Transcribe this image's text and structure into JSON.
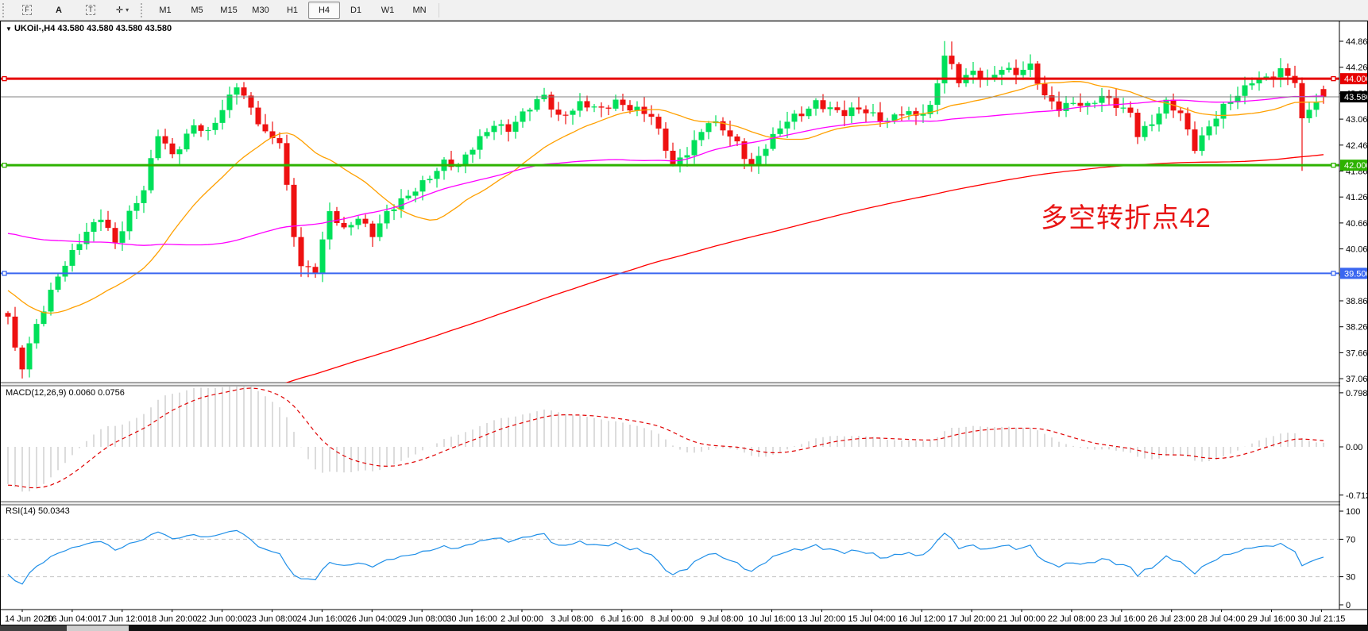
{
  "toolbar": {
    "tools": [
      {
        "id": "frame-f",
        "label": "F",
        "boxed": true
      },
      {
        "id": "font",
        "label": "A",
        "boxed": false
      },
      {
        "id": "text",
        "label": "T",
        "boxed": true
      },
      {
        "id": "cursor",
        "label": "✛",
        "boxed": false,
        "caret": "▾"
      }
    ],
    "timeframes": [
      {
        "label": "M1",
        "active": false
      },
      {
        "label": "M5",
        "active": false
      },
      {
        "label": "M15",
        "active": false
      },
      {
        "label": "M30",
        "active": false
      },
      {
        "label": "H1",
        "active": false
      },
      {
        "label": "H4",
        "active": true
      },
      {
        "label": "D1",
        "active": false
      },
      {
        "label": "W1",
        "active": false
      },
      {
        "label": "MN",
        "active": false
      }
    ]
  },
  "chart": {
    "title_arrow": "▼",
    "title": "UKOil-,H4 43.580 43.580 43.580 43.580",
    "annotation": {
      "text": "多空转折点42",
      "color": "#e81414"
    }
  },
  "chart_data": {
    "type": "candlestick",
    "symbol": "UKOil",
    "timeframe": "H4",
    "colors": {
      "up": "#00e05a",
      "down": "#ee1111",
      "ma_fast": "#ffa000",
      "ma_mid": "#ff00ff",
      "ma_slow": "#ff0000",
      "macd_hist": "#b8b8b8",
      "macd_signal": "#e00000",
      "rsi_line": "#1f8fe8",
      "price_line": "#808080"
    },
    "hlines": [
      {
        "price": 44.0,
        "tag": "44.000",
        "color": "#e60000",
        "width": 3
      },
      {
        "price": 42.0,
        "tag": "42.000",
        "color": "#2db200",
        "width": 3
      },
      {
        "price": 39.5,
        "tag": "39.500",
        "color": "#3a66f0",
        "width": 2
      }
    ],
    "current_price": {
      "value": 43.58,
      "tag": "43.580",
      "tag_bg": "#000000"
    },
    "price_axis_ticks": [
      "44.865",
      "44.265",
      "43.665",
      "43.065",
      "42.465",
      "41.865",
      "41.265",
      "40.665",
      "40.065",
      "39.465",
      "38.865",
      "38.265",
      "37.665",
      "37.065"
    ],
    "macd_axis_ticks": [
      "0.7986",
      "0.00",
      "-0.7124"
    ],
    "rsi_axis_ticks": [
      "100",
      "70",
      "30",
      "0"
    ],
    "date_labels": [
      "14 Jun 2020",
      "16 Jun 04:00",
      "17 Jun 12:00",
      "18 Jun 20:00",
      "22 Jun 00:00",
      "23 Jun 08:00",
      "24 Jun 16:00",
      "26 Jun 04:00",
      "29 Jun 08:00",
      "30 Jun 16:00",
      "2 Jul 00:00",
      "3 Jul 08:00",
      "6 Jul 16:00",
      "8 Jul 00:00",
      "9 Jul 08:00",
      "10 Jul 16:00",
      "13 Jul 20:00",
      "15 Jul 04:00",
      "16 Jul 12:00",
      "17 Jul 20:00",
      "21 Jul 00:00",
      "22 Jul 08:00",
      "23 Jul 16:00",
      "26 Jul 23:00",
      "28 Jul 04:00",
      "29 Jul 16:00",
      "30 Jul 21:15"
    ],
    "indicators": {
      "macd": {
        "label": "MACD(12,26,9) 0.0060 0.0756",
        "fast": 12,
        "slow": 26,
        "signal": 9,
        "axis_max": 0.7986,
        "axis_min": -0.7124
      },
      "rsi": {
        "label": "RSI(14) 50.0343",
        "period": 14,
        "levels": [
          70,
          30
        ],
        "axis": [
          0,
          100
        ]
      }
    },
    "moving_averages": [
      {
        "period": 21,
        "color_key": "ma_fast"
      },
      {
        "period": 55,
        "color_key": "ma_mid"
      },
      {
        "period": 200,
        "color_key": "ma_slow"
      }
    ],
    "visible_bars": 185,
    "price_keypoints": [
      [
        0,
        38.5
      ],
      [
        1,
        37.7
      ],
      [
        2,
        37.3
      ],
      [
        4,
        38.3
      ],
      [
        7,
        39.5
      ],
      [
        10,
        40.2
      ],
      [
        13,
        40.8
      ],
      [
        15,
        40.25
      ],
      [
        17,
        40.9
      ],
      [
        19,
        41.4
      ],
      [
        21,
        42.7
      ],
      [
        23,
        42.25
      ],
      [
        26,
        42.95
      ],
      [
        28,
        42.7
      ],
      [
        30,
        43.25
      ],
      [
        32,
        43.9
      ],
      [
        34,
        43.35
      ],
      [
        36,
        42.7
      ],
      [
        38,
        42.5
      ],
      [
        40,
        40.4
      ],
      [
        41,
        39.7
      ],
      [
        43,
        39.6
      ],
      [
        45,
        40.9
      ],
      [
        47,
        40.45
      ],
      [
        49,
        40.8
      ],
      [
        51,
        40.45
      ],
      [
        53,
        40.9
      ],
      [
        56,
        41.25
      ],
      [
        58,
        41.6
      ],
      [
        61,
        42.1
      ],
      [
        63,
        41.95
      ],
      [
        66,
        42.6
      ],
      [
        68,
        43.0
      ],
      [
        70,
        42.85
      ],
      [
        73,
        43.3
      ],
      [
        75,
        43.6
      ],
      [
        77,
        43.15
      ],
      [
        80,
        43.4
      ],
      [
        83,
        43.25
      ],
      [
        85,
        43.5
      ],
      [
        88,
        43.3
      ],
      [
        90,
        43.1
      ],
      [
        93,
        42.0
      ],
      [
        95,
        42.35
      ],
      [
        98,
        43.0
      ],
      [
        100,
        42.8
      ],
      [
        102,
        42.5
      ],
      [
        104,
        42.0
      ],
      [
        106,
        42.45
      ],
      [
        109,
        43.0
      ],
      [
        111,
        43.2
      ],
      [
        113,
        43.5
      ],
      [
        115,
        43.3
      ],
      [
        117,
        43.15
      ],
      [
        119,
        43.3
      ],
      [
        121,
        43.2
      ],
      [
        123,
        43.05
      ],
      [
        125,
        43.2
      ],
      [
        127,
        43.1
      ],
      [
        129,
        43.35
      ],
      [
        131,
        44.6
      ],
      [
        132,
        44.3
      ],
      [
        133,
        43.95
      ],
      [
        135,
        44.1
      ],
      [
        137,
        43.95
      ],
      [
        139,
        44.3
      ],
      [
        141,
        44.15
      ],
      [
        143,
        44.25
      ],
      [
        145,
        43.55
      ],
      [
        147,
        43.35
      ],
      [
        149,
        43.5
      ],
      [
        151,
        43.35
      ],
      [
        153,
        43.55
      ],
      [
        155,
        43.4
      ],
      [
        157,
        43.25
      ],
      [
        158,
        42.75
      ],
      [
        160,
        42.95
      ],
      [
        162,
        43.4
      ],
      [
        164,
        43.2
      ],
      [
        166,
        42.45
      ],
      [
        168,
        42.9
      ],
      [
        170,
        43.3
      ],
      [
        172,
        43.6
      ],
      [
        174,
        44.0
      ],
      [
        176,
        44.05
      ],
      [
        178,
        44.15
      ],
      [
        180,
        43.9
      ],
      [
        181,
        43.0
      ],
      [
        182,
        43.35
      ],
      [
        183,
        43.5
      ],
      [
        184,
        43.58
      ]
    ],
    "history_keypoints": [
      [
        0,
        27.5
      ],
      [
        70,
        31.5
      ],
      [
        120,
        35.5
      ],
      [
        155,
        40.5
      ],
      [
        172,
        43.0
      ],
      [
        180,
        40.5
      ],
      [
        188,
        38.8
      ],
      [
        199,
        38.6
      ]
    ],
    "wick_overrides": {
      "2": {
        "low": 37.07
      },
      "41": {
        "low": 39.42
      },
      "131": {
        "high": 44.87
      },
      "132": {
        "high": 44.86
      },
      "181": {
        "low": 41.87
      },
      "184": {
        "open": 43.76,
        "close": 43.58,
        "high": 43.84,
        "low": 43.42
      }
    }
  }
}
